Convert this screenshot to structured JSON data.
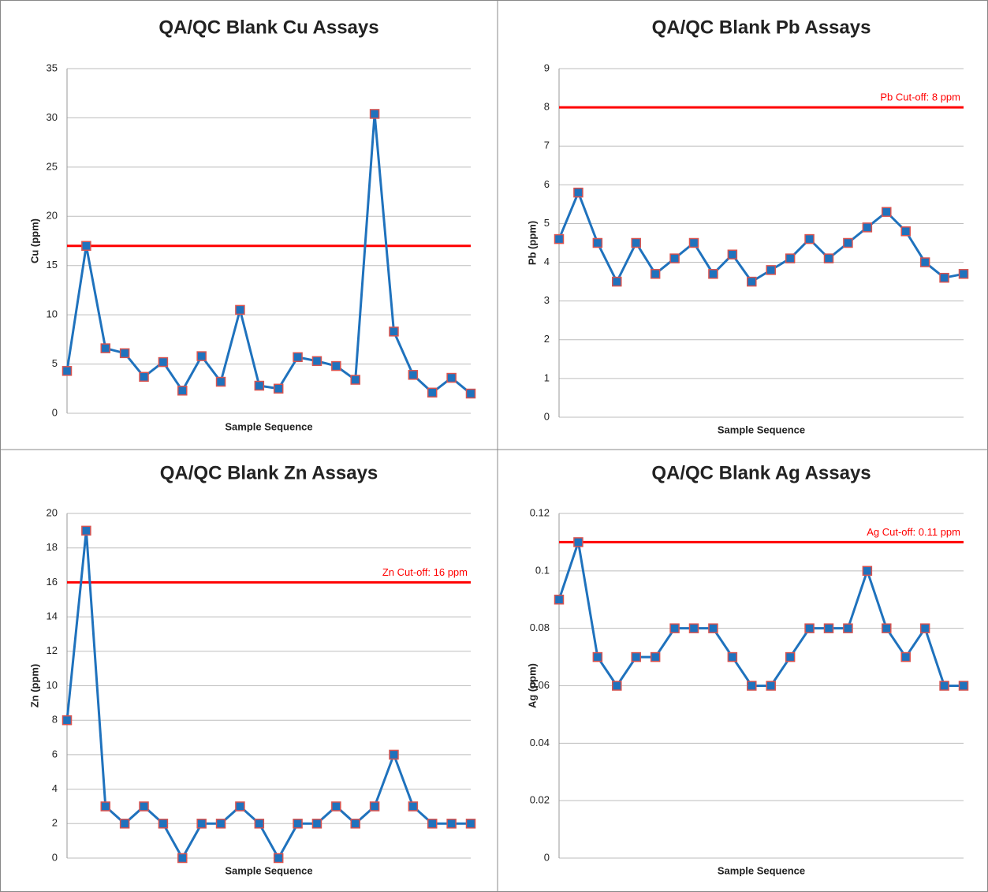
{
  "chart_data": [
    {
      "type": "line",
      "title": "QA/QC Blank Cu Assays",
      "y_label": "Cu (ppm)",
      "x_label": "Sample Sequence",
      "ylim": [
        0,
        35
      ],
      "yticks": [
        0,
        5,
        10,
        15,
        20,
        25,
        30,
        35
      ],
      "grid": true,
      "series": [
        {
          "name": "Cu",
          "color": "#1f72bd",
          "marker_color": "#1f72bd",
          "marker_edge_color": "#d9534f",
          "values": [
            4.3,
            17,
            6.6,
            6.1,
            3.7,
            5.2,
            2.3,
            5.8,
            3.2,
            10.5,
            2.8,
            2.5,
            5.7,
            5.3,
            4.8,
            3.4,
            30.4,
            8.3,
            3.9,
            2.1,
            3.6,
            2.0
          ]
        }
      ],
      "threshold": {
        "value": 17,
        "color": "#ff0000"
      }
    },
    {
      "type": "line",
      "title": "QA/QC Blank Pb Assays",
      "y_label": "Pb (ppm)",
      "x_label": "Sample Sequence",
      "ylim": [
        0,
        9
      ],
      "yticks": [
        0,
        1,
        2,
        3,
        4,
        5,
        6,
        7,
        8,
        9
      ],
      "grid": true,
      "series": [
        {
          "name": "Pb",
          "color": "#1f72bd",
          "marker_color": "#1f72bd",
          "marker_edge_color": "#d9534f",
          "values": [
            4.6,
            5.8,
            4.5,
            3.5,
            4.5,
            3.7,
            4.1,
            4.5,
            3.7,
            4.2,
            3.5,
            3.8,
            4.1,
            4.6,
            4.1,
            4.5,
            4.9,
            5.3,
            4.8,
            4.0,
            3.6,
            3.7
          ]
        }
      ],
      "threshold": {
        "value": 8,
        "label": "Pb Cut-off: 8 ppm",
        "color": "#ff0000"
      }
    },
    {
      "type": "line",
      "title": "QA/QC Blank Zn Assays",
      "y_label": "Zn (ppm)",
      "x_label": "Sample Sequence",
      "ylim": [
        0,
        20
      ],
      "yticks": [
        0,
        2,
        4,
        6,
        8,
        10,
        12,
        14,
        16,
        18,
        20
      ],
      "grid": true,
      "series": [
        {
          "name": "Zn",
          "color": "#1f72bd",
          "marker_color": "#1f72bd",
          "marker_edge_color": "#d9534f",
          "values": [
            8,
            19,
            3,
            2,
            3,
            2,
            0,
            2,
            2,
            3,
            2,
            0,
            2,
            2,
            3,
            2,
            3,
            6,
            3,
            2,
            2,
            2
          ]
        }
      ],
      "threshold": {
        "value": 16,
        "label": "Zn Cut-off: 16 ppm",
        "color": "#ff0000"
      }
    },
    {
      "type": "line",
      "title": "QA/QC Blank Ag Assays",
      "y_label": "Ag (ppm)",
      "x_label": "Sample Sequence",
      "ylim": [
        0,
        0.12
      ],
      "yticks": [
        0,
        0.02,
        0.04,
        0.06,
        0.08,
        0.1,
        0.12
      ],
      "grid": true,
      "series": [
        {
          "name": "Ag",
          "color": "#1f72bd",
          "marker_color": "#1f72bd",
          "marker_edge_color": "#d9534f",
          "values": [
            0.09,
            0.11,
            0.07,
            0.06,
            0.07,
            0.07,
            0.08,
            0.08,
            0.08,
            0.07,
            0.06,
            0.06,
            0.07,
            0.08,
            0.08,
            0.08,
            0.1,
            0.08,
            0.07,
            0.08,
            0.06,
            0.06
          ]
        }
      ],
      "threshold": {
        "value": 0.11,
        "label": "Ag Cut-off: 0.11 ppm",
        "color": "#ff0000"
      }
    }
  ]
}
